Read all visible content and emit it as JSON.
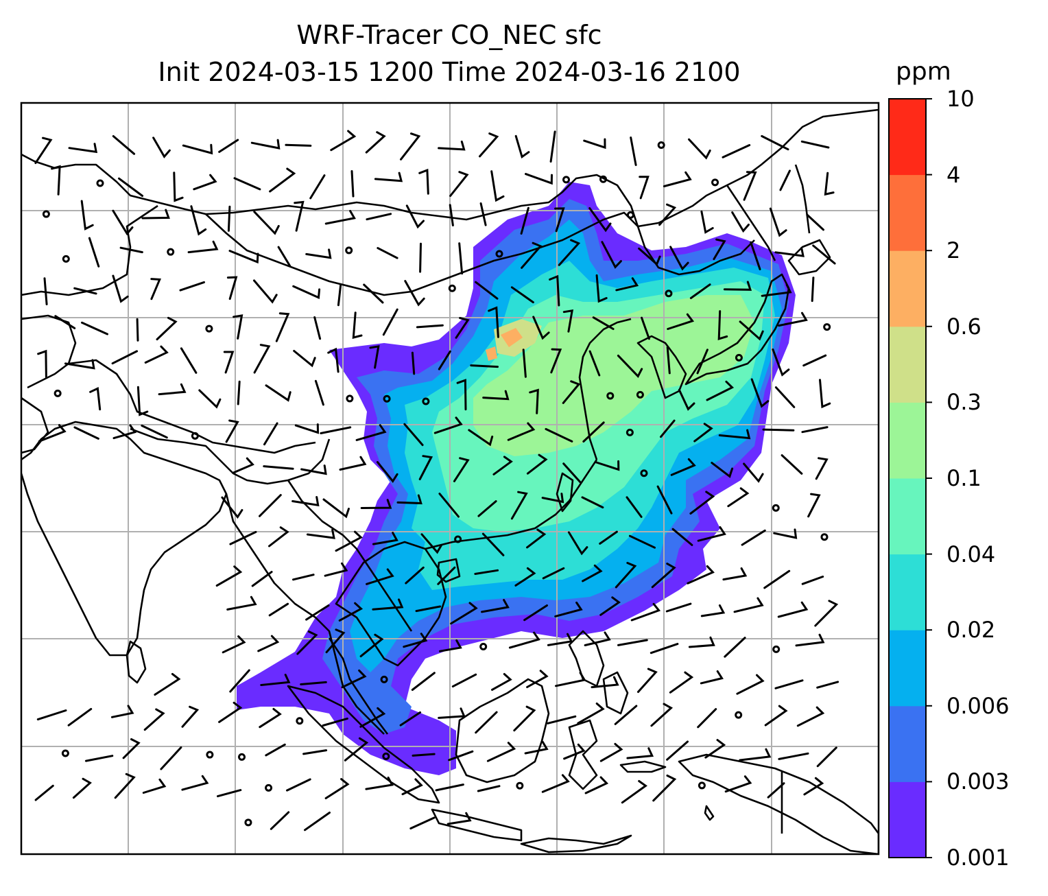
{
  "title": {
    "line1": "WRF-Tracer CO_NEC sfc",
    "line2": "Init 2024-03-15 1200 Time 2024-03-16 2100"
  },
  "colorbar": {
    "unit": "ppm",
    "ticks": [
      "0.001",
      "0.003",
      "0.006",
      "0.02",
      "0.04",
      "0.1",
      "0.3",
      "0.6",
      "2",
      "4",
      "10"
    ],
    "colors": [
      "#6a2cff",
      "#3a72f2",
      "#05b0ef",
      "#2dded6",
      "#67f5bd",
      "#9cf597",
      "#cfe089",
      "#fdaf62",
      "#fe6f3a",
      "#ff2a18"
    ]
  },
  "map": {
    "field": "CO_NEC",
    "level": "sfc",
    "gridlines": true,
    "overlays": [
      "coastlines",
      "country-borders",
      "wind-barbs"
    ]
  }
}
